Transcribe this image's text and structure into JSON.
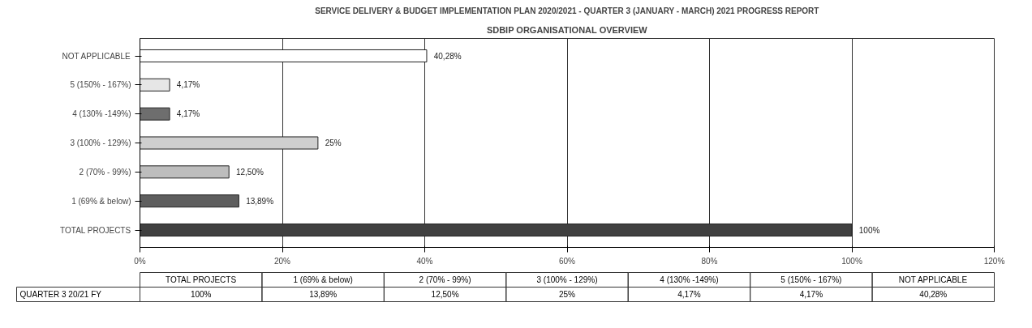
{
  "chart_data": {
    "type": "bar",
    "orientation": "horizontal",
    "title": "SDBIP ORGANISATIONAL OVERVIEW",
    "subtitle": "SERVICE DELIVERY & BUDGET IMPLEMENTATION PLAN 2020/2021 - QUARTER 3 (JANUARY - MARCH) 2021 PROGRESS REPORT",
    "categories": [
      "NOT APPLICABLE",
      "5 (150% - 167%)",
      "4 (130% -149%)",
      "3 (100% - 129%)",
      "2 (70% - 99%)",
      "1 (69% & below)",
      "TOTAL PROJECTS"
    ],
    "series": [
      {
        "name": "QUARTER 3 20/21 FY",
        "values": [
          40.28,
          4.17,
          4.17,
          25,
          12.5,
          13.89,
          100
        ],
        "colors": [
          "#ffffff",
          "#e6e6e6",
          "#6e6e6e",
          "#cfcfcf",
          "#bdbdbd",
          "#5e5e5e",
          "#404040"
        ],
        "value_labels": [
          "40,28%",
          "4,17%",
          "4,17%",
          "25%",
          "12,50%",
          "13,89%",
          "100%"
        ]
      }
    ],
    "xlim": [
      0,
      120
    ],
    "xticks": [
      {
        "value": 0,
        "label": "0%"
      },
      {
        "value": 20,
        "label": "20%"
      },
      {
        "value": 40,
        "label": "40%"
      },
      {
        "value": 60,
        "label": "60%"
      },
      {
        "value": 80,
        "label": "80%"
      },
      {
        "value": 100,
        "label": "100%"
      },
      {
        "value": 120,
        "label": "120%"
      }
    ],
    "grid": "x",
    "legend": false
  }
}
